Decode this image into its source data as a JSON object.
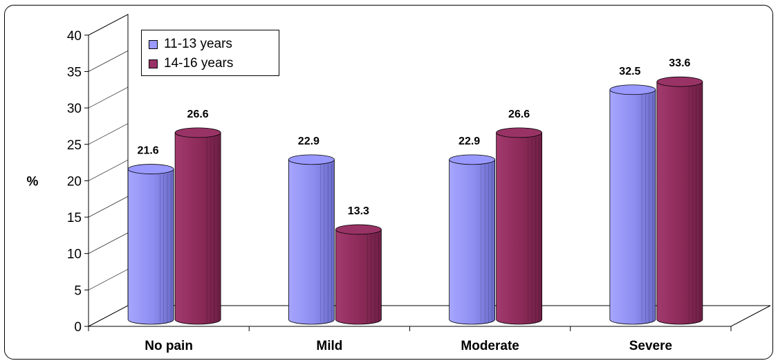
{
  "chart_data": {
    "type": "bar",
    "title": "",
    "xlabel": "",
    "ylabel": "%",
    "ylim": [
      0,
      40
    ],
    "yticks": [
      0,
      5,
      10,
      15,
      20,
      25,
      30,
      35,
      40
    ],
    "categories": [
      "No pain",
      "Mild",
      "Moderate",
      "Severe"
    ],
    "series": [
      {
        "name": "11-13 years",
        "values": [
          21.6,
          22.9,
          22.9,
          32.5
        ],
        "color": "#9999ff"
      },
      {
        "name": "14-16 years",
        "values": [
          26.6,
          13.3,
          26.6,
          33.6
        ],
        "color": "#993366"
      }
    ],
    "legend_position": "top-left",
    "grid": false,
    "style": "3d-cylinder"
  }
}
